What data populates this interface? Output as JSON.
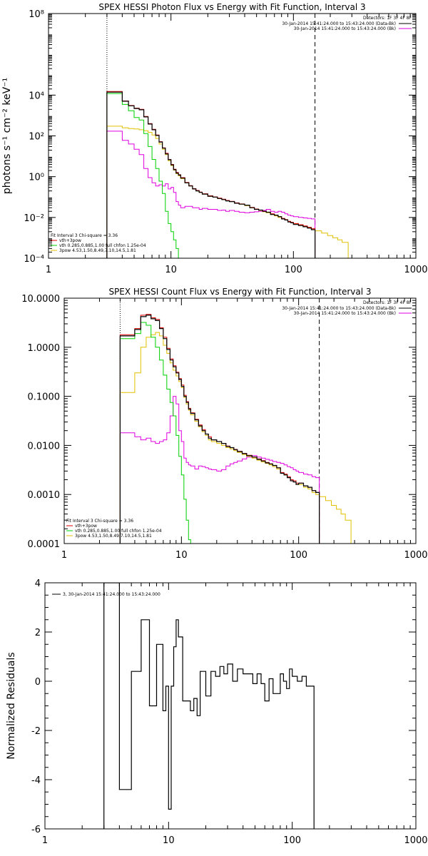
{
  "colors": {
    "data": "#000000",
    "total_fit": "#e00000",
    "thermal": "#00d000",
    "nonthermal": "#e0c000",
    "background": "#e000e0",
    "axes": "#000000"
  },
  "fit_info": {
    "label": "Fit Interval 3   Chi-square = 3.36",
    "legend": [
      {
        "label": "vth+3pow",
        "color": "#e00000"
      },
      {
        "label": "vth 0.285,0.885,1.00  full chfon 1.25e-04",
        "color": "#00d000"
      },
      {
        "label": "3pow 4.53,1.50,8.49,7.10,14.5,1.81",
        "color": "#e0c000"
      }
    ]
  },
  "detectors_header": "Detectors: 1F 3F 4F 8F",
  "time_legend": [
    {
      "label": "30-Jan-2014 15:41:24.000 to 15:43:24.000 (Data-Bk)",
      "color": "#000000"
    },
    {
      "label": "30-Jan-2014 15:41:24.000 to 15:43:24.000 (Bk)",
      "color": "#e000e0"
    }
  ],
  "energy_edges": [
    3,
    3.5,
    4,
    4.5,
    5,
    5.5,
    6,
    6.5,
    7,
    7.5,
    8,
    8.5,
    9,
    9.5,
    10,
    10.5,
    11,
    11.5,
    12,
    13,
    14,
    15,
    16,
    17,
    18,
    20,
    22,
    24,
    26,
    28,
    30,
    33,
    36,
    40,
    44,
    48,
    52,
    56,
    60,
    65,
    70,
    75,
    80,
    85,
    90,
    95,
    100,
    110,
    120,
    130,
    140,
    150
  ],
  "chart_data": [
    {
      "id": "photon",
      "type": "line",
      "title": "SPEX HESSI Photon Flux vs Energy with Fit Function, Interval 3",
      "xlabel": "",
      "ylabel": "photons s⁻¹ cm⁻² keV⁻¹",
      "xscale": "log",
      "yscale": "log",
      "xlim": [
        1,
        1000
      ],
      "ylim": [
        0.0001,
        100000000
      ],
      "xticks": [
        1,
        10,
        100,
        1000
      ],
      "xtick_labels": [
        "1",
        "10",
        "100",
        "1000"
      ],
      "yticks": [
        0.0001,
        0.01,
        1,
        100,
        10000,
        100000000
      ],
      "ytick_labels": [
        "10⁻⁴",
        "10⁻²",
        "10⁰",
        "10²",
        "10⁴",
        "10⁸"
      ],
      "vlines": [
        {
          "x": 3,
          "style": "dotted"
        },
        {
          "x": 150,
          "style": "dashed"
        }
      ],
      "series": [
        {
          "key": "data",
          "edges": "energy_edges",
          "values": [
            14000,
            14000,
            5000,
            3000,
            2200,
            1900,
            850,
            380,
            200,
            105,
            50,
            25,
            13,
            6.8,
            3.8,
            2.2,
            1.5,
            1.2,
            0.85,
            0.5,
            0.35,
            0.25,
            0.2,
            0.17,
            0.14,
            0.11,
            0.1,
            0.085,
            0.075,
            0.065,
            0.06,
            0.05,
            0.045,
            0.04,
            0.03,
            0.025,
            0.023,
            0.02,
            0.018,
            0.014,
            0.013,
            0.011,
            0.0085,
            0.0075,
            0.006,
            0.0055,
            0.0045,
            0.004,
            0.0035,
            0.003,
            0.0025
          ]
        },
        {
          "key": "total_fit",
          "edges": "energy_edges",
          "values": [
            15000,
            15000,
            5200,
            3100,
            2300,
            2000,
            900,
            400,
            210,
            110,
            52,
            26,
            14,
            7,
            4,
            2.3,
            1.6,
            1.25,
            0.9,
            0.52,
            0.36,
            0.26,
            0.21,
            0.175,
            0.145,
            0.115,
            0.102,
            0.088,
            0.078,
            0.068,
            0.062,
            0.052,
            0.046,
            0.04,
            0.031,
            0.026,
            0.023,
            0.02,
            0.018,
            0.015,
            0.013,
            0.011,
            0.009,
            0.0078,
            0.0065,
            0.0058,
            0.005,
            0.0044,
            0.0038,
            0.0033,
            0.0028
          ]
        },
        {
          "key": "thermal",
          "edges": [
            3,
            3.5,
            4,
            4.5,
            5,
            5.5,
            6,
            6.5,
            7,
            7.5,
            8,
            8.5,
            9,
            9.5,
            10,
            10.5,
            11,
            11.5,
            12,
            13
          ],
          "values": [
            12000,
            12000,
            3500,
            1700,
            800,
            600,
            130,
            30,
            7,
            2.5,
            0.6,
            0.15,
            0.02,
            0.005,
            0.002,
            0.0008,
            0.0003,
            5e-05,
            5e-05
          ]
        },
        {
          "key": "nonthermal",
          "edges": [
            3,
            3.5,
            4,
            4.5,
            5,
            5.5,
            6,
            6.5,
            7,
            7.5,
            8,
            8.5,
            9,
            9.5,
            10,
            10.5,
            11,
            11.5,
            12,
            13,
            14,
            15,
            16,
            17,
            18,
            20,
            22,
            24,
            26,
            28,
            30,
            33,
            36,
            40,
            44,
            48,
            52,
            56,
            60,
            65,
            70,
            75,
            80,
            85,
            90,
            95,
            100,
            110,
            120,
            130,
            140,
            150,
            170,
            190,
            210,
            230,
            250,
            280
          ],
          "values": [
            300,
            300,
            250,
            230,
            220,
            200,
            180,
            150,
            110,
            75,
            40,
            22,
            12,
            6,
            3.5,
            2.1,
            1.4,
            1.1,
            0.8,
            0.5,
            0.35,
            0.25,
            0.2,
            0.17,
            0.14,
            0.11,
            0.1,
            0.085,
            0.075,
            0.065,
            0.06,
            0.05,
            0.045,
            0.038,
            0.03,
            0.025,
            0.022,
            0.019,
            0.017,
            0.014,
            0.012,
            0.01,
            0.0085,
            0.0075,
            0.0063,
            0.0057,
            0.0049,
            0.0043,
            0.0037,
            0.0032,
            0.0028,
            0.0022,
            0.0017,
            0.0013,
            0.001,
            0.0008,
            0.0006
          ]
        },
        {
          "key": "background",
          "edges": "energy_edges",
          "values": [
            170,
            170,
            60,
            40,
            22,
            12,
            2.5,
            0.9,
            0.5,
            0.35,
            0.4,
            0.35,
            0.45,
            0.25,
            0.3,
            0.17,
            0.06,
            0.04,
            0.03,
            0.035,
            0.035,
            0.03,
            0.03,
            0.025,
            0.028,
            0.025,
            0.025,
            0.022,
            0.023,
            0.02,
            0.022,
            0.02,
            0.018,
            0.017,
            0.018,
            0.019,
            0.02,
            0.022,
            0.025,
            0.02,
            0.018,
            0.02,
            0.018,
            0.015,
            0.013,
            0.012,
            0.011,
            0.01,
            0.0095,
            0.009,
            0.0085
          ]
        }
      ]
    },
    {
      "id": "count",
      "type": "line",
      "title": "SPEX HESSI Count Flux vs Energy with Fit Function, Interval 3",
      "xlabel": "",
      "ylabel": "",
      "xscale": "log",
      "yscale": "log",
      "xlim": [
        1,
        1000
      ],
      "ylim": [
        0.0001,
        10
      ],
      "xticks": [
        1,
        10,
        100,
        1000
      ],
      "xtick_labels": [
        "1",
        "10",
        "100",
        "1000"
      ],
      "yticks": [
        0.0001,
        0.001,
        0.01,
        0.1,
        1,
        10
      ],
      "ytick_labels": [
        "0.0001",
        "0.0010",
        "0.0100",
        "0.1000",
        "1.0000",
        "10.0000"
      ],
      "vlines": [
        {
          "x": 3,
          "style": "dotted"
        },
        {
          "x": 150,
          "style": "dashed"
        }
      ],
      "series": [
        {
          "key": "data",
          "edges": "energy_edges",
          "values": [
            1.7,
            1.7,
            2.3,
            4.2,
            4.5,
            3.8,
            3.5,
            2.4,
            1.5,
            0.9,
            0.55,
            0.4,
            0.3,
            0.22,
            0.16,
            0.1,
            0.075,
            0.055,
            0.045,
            0.033,
            0.025,
            0.02,
            0.017,
            0.014,
            0.013,
            0.012,
            0.011,
            0.0095,
            0.009,
            0.0082,
            0.0075,
            0.0068,
            0.0062,
            0.0058,
            0.0052,
            0.0048,
            0.0044,
            0.0042,
            0.0039,
            0.0035,
            0.0027,
            0.0025,
            0.0022,
            0.0019,
            0.0018,
            0.0016,
            0.0017,
            0.0015,
            0.0014,
            0.0012,
            0.0011
          ]
        },
        {
          "key": "total_fit",
          "edges": "energy_edges",
          "values": [
            1.8,
            1.8,
            2.4,
            4.5,
            4.7,
            4.0,
            3.7,
            2.5,
            1.6,
            0.95,
            0.58,
            0.42,
            0.31,
            0.23,
            0.17,
            0.105,
            0.078,
            0.057,
            0.046,
            0.034,
            0.026,
            0.021,
            0.017,
            0.015,
            0.013,
            0.012,
            0.011,
            0.0097,
            0.009,
            0.0083,
            0.0076,
            0.0069,
            0.0063,
            0.0058,
            0.0053,
            0.0049,
            0.0045,
            0.0042,
            0.0039,
            0.0035,
            0.0028,
            0.0026,
            0.0023,
            0.002,
            0.0019,
            0.0017,
            0.0017,
            0.0015,
            0.0014,
            0.0012,
            0.0011
          ]
        },
        {
          "key": "thermal",
          "edges": [
            3,
            3.5,
            4,
            4.5,
            5,
            5.5,
            6,
            6.5,
            7,
            7.5,
            8,
            8.5,
            9,
            9.5,
            10,
            10.5,
            11,
            11.5,
            12
          ],
          "values": [
            1.5,
            1.5,
            1.9,
            3.2,
            2.8,
            1.6,
            1.0,
            0.55,
            0.27,
            0.14,
            0.075,
            0.04,
            0.016,
            0.006,
            0.0025,
            0.0008,
            0.0003,
            0.00012
          ]
        },
        {
          "key": "nonthermal",
          "edges": [
            3,
            3.5,
            4,
            4.5,
            5,
            5.5,
            6,
            6.5,
            7,
            7.5,
            8,
            8.5,
            9,
            9.5,
            10,
            10.5,
            11,
            11.5,
            12,
            13,
            14,
            15,
            16,
            17,
            18,
            20,
            22,
            24,
            26,
            28,
            30,
            33,
            36,
            40,
            44,
            48,
            52,
            56,
            60,
            65,
            70,
            75,
            80,
            85,
            90,
            95,
            100,
            110,
            120,
            130,
            140,
            150,
            170,
            190,
            210,
            230,
            250,
            280
          ],
          "values": [
            0.12,
            0.12,
            0.3,
            1.0,
            1.6,
            1.8,
            2.0,
            1.7,
            1.1,
            0.75,
            0.48,
            0.34,
            0.26,
            0.2,
            0.15,
            0.095,
            0.07,
            0.052,
            0.042,
            0.031,
            0.024,
            0.019,
            0.016,
            0.013,
            0.012,
            0.011,
            0.01,
            0.009,
            0.0085,
            0.0078,
            0.0072,
            0.0065,
            0.006,
            0.0055,
            0.005,
            0.0046,
            0.0043,
            0.004,
            0.0037,
            0.0033,
            0.0027,
            0.0025,
            0.0022,
            0.0019,
            0.0018,
            0.0016,
            0.0016,
            0.0014,
            0.0013,
            0.0011,
            0.001,
            0.0009,
            0.00075,
            0.0006,
            0.0005,
            0.0004,
            0.0003
          ]
        },
        {
          "key": "background",
          "edges": "energy_edges",
          "values": [
            0.018,
            0.018,
            0.015,
            0.013,
            0.014,
            0.012,
            0.011,
            0.012,
            0.013,
            0.018,
            0.04,
            0.1,
            0.07,
            0.02,
            0.012,
            0.0055,
            0.0045,
            0.004,
            0.0038,
            0.0033,
            0.0038,
            0.0037,
            0.0035,
            0.0033,
            0.0032,
            0.003,
            0.0032,
            0.0038,
            0.0042,
            0.0045,
            0.0048,
            0.0053,
            0.0058,
            0.0062,
            0.0058,
            0.0055,
            0.0052,
            0.005,
            0.0047,
            0.0045,
            0.0043,
            0.004,
            0.0037,
            0.0035,
            0.0032,
            0.003,
            0.0028,
            0.0026,
            0.0025,
            0.0023,
            0.0022
          ]
        }
      ]
    },
    {
      "id": "residuals",
      "type": "line",
      "title": "",
      "xlabel": "",
      "ylabel": "Normalized Residuals",
      "xscale": "log",
      "yscale": "linear",
      "xlim": [
        1,
        1000
      ],
      "ylim": [
        -6,
        4
      ],
      "xticks": [
        1,
        10,
        100,
        1000
      ],
      "xtick_labels": [
        "1",
        "10",
        "100",
        "1000"
      ],
      "yticks": [
        -6,
        -4,
        -2,
        0,
        2,
        4
      ],
      "ytick_labels": [
        "-6",
        "-4",
        "-2",
        "0",
        "2",
        "4"
      ],
      "legend_label": "3, 30-Jan-2014 15:41:24.000 to 15:43:24.000",
      "series": [
        {
          "key": "data",
          "edges": [
            3,
            4,
            4.5,
            5,
            5.5,
            6,
            6.5,
            7,
            7.5,
            8,
            8.5,
            9,
            9.5,
            10,
            10.5,
            11,
            11.5,
            12,
            13,
            14,
            15,
            16,
            17,
            18,
            20,
            22,
            24,
            26,
            28,
            30,
            33,
            36,
            40,
            44,
            48,
            52,
            56,
            60,
            65,
            70,
            75,
            80,
            85,
            90,
            95,
            100,
            110,
            120,
            130,
            140,
            150
          ],
          "values": [
            4.0,
            -4.4,
            -4.4,
            0.4,
            0.4,
            2.5,
            2.5,
            -1.0,
            -1.0,
            1.5,
            1.5,
            -1.2,
            -0.2,
            -5.2,
            -0.2,
            1.4,
            2.5,
            1.8,
            -0.8,
            -0.8,
            -1.2,
            -0.7,
            -1.4,
            0.4,
            -0.6,
            0.4,
            0.2,
            0.6,
            0.3,
            0.7,
            0.0,
            0.5,
            0.3,
            0.3,
            -0.1,
            0.3,
            -0.1,
            -0.8,
            0.1,
            -0.5,
            -0.5,
            0.3,
            0.0,
            -0.3,
            0.5,
            0.2,
            0.0,
            0.2,
            -0.2,
            -0.2
          ]
        }
      ]
    }
  ]
}
